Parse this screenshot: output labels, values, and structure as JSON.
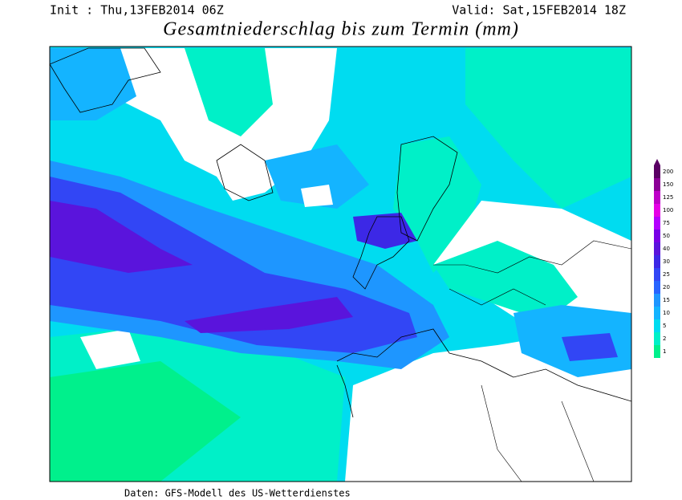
{
  "header": {
    "init": "Init : Thu,13FEB2014 06Z",
    "valid": "Valid: Sat,15FEB2014 18Z",
    "title": "Gesamtniederschlag bis zum Termin (mm)"
  },
  "footer": "Daten: GFS-Modell des US-Wetterdienstes",
  "legend": [
    {
      "label": 200,
      "color": "#5a0064"
    },
    {
      "label": 150,
      "color": "#8c0096"
    },
    {
      "label": 125,
      "color": "#be00c8"
    },
    {
      "label": 100,
      "color": "#e600e6"
    },
    {
      "label": 75,
      "color": "#b400ff"
    },
    {
      "label": 50,
      "color": "#7800e6"
    },
    {
      "label": 40,
      "color": "#5a14dc"
    },
    {
      "label": 30,
      "color": "#3c28e6"
    },
    {
      "label": 25,
      "color": "#3246f5"
    },
    {
      "label": 20,
      "color": "#2864ff"
    },
    {
      "label": 15,
      "color": "#1e96ff"
    },
    {
      "label": 10,
      "color": "#14b4ff"
    },
    {
      "label": 5,
      "color": "#00dcf0"
    },
    {
      "label": 2,
      "color": "#00f0c8"
    },
    {
      "label": 1,
      "color": "#00f08c"
    }
  ]
}
